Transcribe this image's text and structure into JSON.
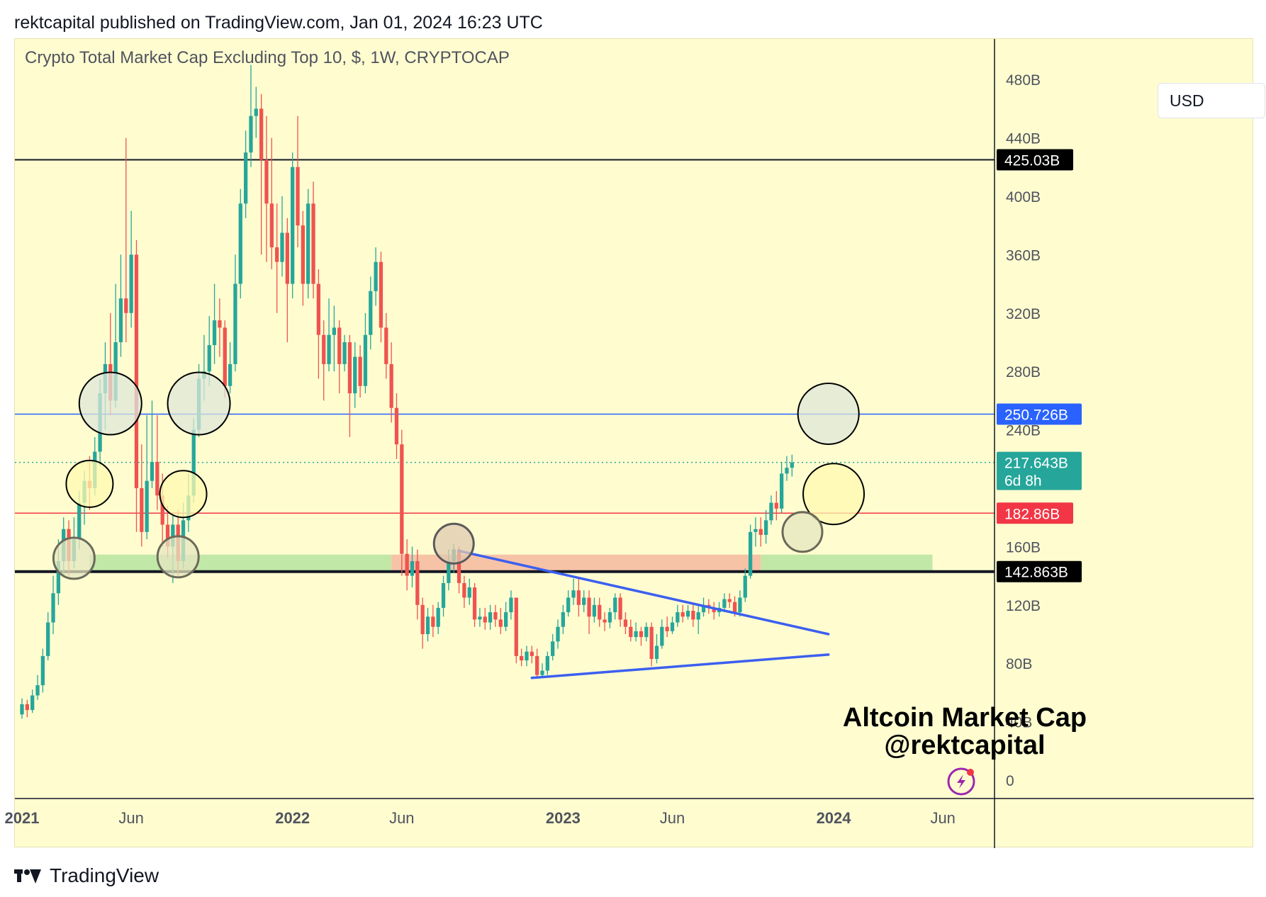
{
  "header": {
    "published": "rektcapital published on TradingView.com, Jan 01, 2024 16:23 UTC"
  },
  "footer": {
    "brand": "TradingView"
  },
  "currency_button": "USD",
  "colors": {
    "background": "#fffdd0",
    "up": "#26a69a",
    "down": "#ef5350",
    "trendline": "#3c5ff0",
    "resistance_blue": "#2962ff",
    "support_red": "#f23645"
  },
  "chart_data": {
    "type": "candlestick",
    "title": "Crypto Total Market Cap Excluding Top 10, $, 1W, CRYPTOCAP",
    "ylim": [
      0,
      500
    ],
    "y_unit": "B",
    "y_ticks": [
      0,
      40,
      80,
      120,
      160,
      200,
      240,
      280,
      320,
      360,
      400,
      440,
      480
    ],
    "y_tick_labels": [
      "0",
      "40B",
      "80B",
      "120B",
      "160B",
      "240B",
      "280B",
      "320B",
      "360B",
      "400B",
      "440B",
      "480B"
    ],
    "y_tick_label_values": [
      0,
      40,
      80,
      120,
      160,
      240,
      280,
      320,
      360,
      400,
      440,
      480
    ],
    "x_ticks": [
      {
        "label": "2021",
        "week": 0,
        "bold": true
      },
      {
        "label": "Jun",
        "week": 21,
        "bold": false
      },
      {
        "label": "2022",
        "week": 52,
        "bold": true
      },
      {
        "label": "Jun",
        "week": 73,
        "bold": false
      },
      {
        "label": "2023",
        "week": 104,
        "bold": true
      },
      {
        "label": "Jun",
        "week": 125,
        "bold": false
      },
      {
        "label": "2024",
        "week": 156,
        "bold": true
      },
      {
        "label": "Jun",
        "week": 177,
        "bold": false
      }
    ],
    "weeks_total": 183,
    "price_levels": [
      {
        "value": 425.03,
        "label": "425.03B",
        "color": "#131722",
        "style": "solid",
        "width": 2
      },
      {
        "value": 250.726,
        "label": "250.726B",
        "color": "#2962ff",
        "style": "solid",
        "width": 1.5
      },
      {
        "value": 217.643,
        "label": "217.643B",
        "sublabel": "6d 8h",
        "color": "#26a69a",
        "style": "dotted",
        "width": 1.5
      },
      {
        "value": 182.86,
        "label": "182.86B",
        "color": "#f23645",
        "style": "solid",
        "width": 1.5
      },
      {
        "value": 142.863,
        "label": "142.863B",
        "color": "#131722",
        "style": "solid",
        "width": 4
      }
    ],
    "zones": [
      {
        "w0": 13,
        "w1": 71,
        "y0": 142.9,
        "y1": 154.5,
        "color": "#b7e4a0"
      },
      {
        "w0": 71,
        "w1": 142,
        "y0": 142.9,
        "y1": 154.5,
        "color": "#f6b8a0"
      },
      {
        "w0": 142,
        "w1": 175,
        "y0": 142.9,
        "y1": 154.5,
        "color": "#b7e4a0"
      }
    ],
    "trendlines": [
      {
        "w0": 84,
        "v0": 157,
        "w1": 155,
        "v1": 100
      },
      {
        "w0": 98,
        "v0": 70,
        "w1": 155,
        "v1": 86
      }
    ],
    "circles": [
      {
        "week": 17,
        "value": 258,
        "r": 44,
        "fill": "#dde5d8"
      },
      {
        "week": 34,
        "value": 258,
        "r": 44,
        "fill": "#dde5d8"
      },
      {
        "week": 13,
        "value": 203,
        "r": 33,
        "fill": "#fff8b0"
      },
      {
        "week": 31,
        "value": 196,
        "r": 33,
        "fill": "#fff8b0"
      },
      {
        "week": 10,
        "value": 152,
        "r": 29,
        "fill": "#e6e6c0"
      },
      {
        "week": 30,
        "value": 153,
        "r": 29,
        "fill": "#e6e6c0"
      },
      {
        "week": 83,
        "value": 162,
        "r": 28,
        "fill": "#e0c8b0"
      },
      {
        "week": 155,
        "value": 251,
        "r": 43,
        "fill": "#dde5d8"
      },
      {
        "week": 156,
        "value": 196,
        "r": 43,
        "fill": "#fff8b0"
      },
      {
        "week": 150,
        "value": 170,
        "r": 28,
        "fill": "#e6e6c0"
      }
    ],
    "candles": [
      {
        "o": 45,
        "c": 52,
        "h": 56,
        "l": 42
      },
      {
        "o": 52,
        "c": 48,
        "h": 55,
        "l": 43
      },
      {
        "o": 48,
        "c": 58,
        "h": 62,
        "l": 46
      },
      {
        "o": 58,
        "c": 65,
        "h": 72,
        "l": 55
      },
      {
        "o": 65,
        "c": 85,
        "h": 90,
        "l": 60
      },
      {
        "o": 85,
        "c": 108,
        "h": 115,
        "l": 82
      },
      {
        "o": 108,
        "c": 128,
        "h": 140,
        "l": 100
      },
      {
        "o": 128,
        "c": 150,
        "h": 165,
        "l": 120
      },
      {
        "o": 150,
        "c": 172,
        "h": 180,
        "l": 140
      },
      {
        "o": 172,
        "c": 150,
        "h": 178,
        "l": 140
      },
      {
        "o": 150,
        "c": 165,
        "h": 180,
        "l": 145
      },
      {
        "o": 165,
        "c": 190,
        "h": 198,
        "l": 158
      },
      {
        "o": 190,
        "c": 205,
        "h": 212,
        "l": 175
      },
      {
        "o": 205,
        "c": 200,
        "h": 222,
        "l": 185
      },
      {
        "o": 200,
        "c": 225,
        "h": 235,
        "l": 195
      },
      {
        "o": 225,
        "c": 265,
        "h": 275,
        "l": 215
      },
      {
        "o": 265,
        "c": 285,
        "h": 300,
        "l": 240
      },
      {
        "o": 285,
        "c": 260,
        "h": 320,
        "l": 250
      },
      {
        "o": 260,
        "c": 300,
        "h": 340,
        "l": 255
      },
      {
        "o": 300,
        "c": 330,
        "h": 360,
        "l": 290
      },
      {
        "o": 330,
        "c": 320,
        "h": 440,
        "l": 300
      },
      {
        "o": 320,
        "c": 360,
        "h": 390,
        "l": 310
      },
      {
        "o": 360,
        "c": 200,
        "h": 370,
        "l": 170
      },
      {
        "o": 200,
        "c": 170,
        "h": 230,
        "l": 160
      },
      {
        "o": 170,
        "c": 205,
        "h": 250,
        "l": 165
      },
      {
        "o": 205,
        "c": 218,
        "h": 260,
        "l": 200
      },
      {
        "o": 218,
        "c": 195,
        "h": 250,
        "l": 185
      },
      {
        "o": 195,
        "c": 175,
        "h": 210,
        "l": 160
      },
      {
        "o": 175,
        "c": 160,
        "h": 188,
        "l": 152
      },
      {
        "o": 160,
        "c": 175,
        "h": 182,
        "l": 135
      },
      {
        "o": 175,
        "c": 150,
        "h": 185,
        "l": 140
      },
      {
        "o": 150,
        "c": 178,
        "h": 190,
        "l": 145
      },
      {
        "o": 178,
        "c": 195,
        "h": 210,
        "l": 170
      },
      {
        "o": 195,
        "c": 240,
        "h": 248,
        "l": 190
      },
      {
        "o": 240,
        "c": 275,
        "h": 285,
        "l": 235
      },
      {
        "o": 275,
        "c": 280,
        "h": 305,
        "l": 260
      },
      {
        "o": 280,
        "c": 298,
        "h": 318,
        "l": 270
      },
      {
        "o": 298,
        "c": 315,
        "h": 340,
        "l": 285
      },
      {
        "o": 315,
        "c": 310,
        "h": 330,
        "l": 290
      },
      {
        "o": 310,
        "c": 270,
        "h": 315,
        "l": 262
      },
      {
        "o": 270,
        "c": 285,
        "h": 300,
        "l": 265
      },
      {
        "o": 285,
        "c": 340,
        "h": 360,
        "l": 280
      },
      {
        "o": 340,
        "c": 395,
        "h": 405,
        "l": 330
      },
      {
        "o": 395,
        "c": 430,
        "h": 445,
        "l": 385
      },
      {
        "o": 430,
        "c": 455,
        "h": 490,
        "l": 420
      },
      {
        "o": 455,
        "c": 460,
        "h": 475,
        "l": 440
      },
      {
        "o": 460,
        "c": 425,
        "h": 470,
        "l": 360
      },
      {
        "o": 425,
        "c": 395,
        "h": 455,
        "l": 355
      },
      {
        "o": 395,
        "c": 365,
        "h": 440,
        "l": 350
      },
      {
        "o": 365,
        "c": 355,
        "h": 395,
        "l": 320
      },
      {
        "o": 355,
        "c": 375,
        "h": 400,
        "l": 345
      },
      {
        "o": 375,
        "c": 340,
        "h": 385,
        "l": 300
      },
      {
        "o": 340,
        "c": 420,
        "h": 430,
        "l": 330
      },
      {
        "o": 420,
        "c": 380,
        "h": 455,
        "l": 365
      },
      {
        "o": 380,
        "c": 340,
        "h": 390,
        "l": 325
      },
      {
        "o": 340,
        "c": 395,
        "h": 405,
        "l": 330
      },
      {
        "o": 395,
        "c": 340,
        "h": 410,
        "l": 330
      },
      {
        "o": 340,
        "c": 305,
        "h": 350,
        "l": 275
      },
      {
        "o": 305,
        "c": 285,
        "h": 315,
        "l": 260
      },
      {
        "o": 285,
        "c": 305,
        "h": 330,
        "l": 280
      },
      {
        "o": 305,
        "c": 310,
        "h": 325,
        "l": 280
      },
      {
        "o": 310,
        "c": 285,
        "h": 315,
        "l": 265
      },
      {
        "o": 285,
        "c": 300,
        "h": 305,
        "l": 280
      },
      {
        "o": 300,
        "c": 265,
        "h": 305,
        "l": 235
      },
      {
        "o": 265,
        "c": 290,
        "h": 300,
        "l": 255
      },
      {
        "o": 290,
        "c": 270,
        "h": 298,
        "l": 262
      },
      {
        "o": 270,
        "c": 305,
        "h": 320,
        "l": 265
      },
      {
        "o": 305,
        "c": 335,
        "h": 345,
        "l": 295
      },
      {
        "o": 335,
        "c": 355,
        "h": 365,
        "l": 325
      },
      {
        "o": 355,
        "c": 310,
        "h": 362,
        "l": 300
      },
      {
        "o": 310,
        "c": 285,
        "h": 320,
        "l": 275
      },
      {
        "o": 285,
        "c": 255,
        "h": 300,
        "l": 245
      },
      {
        "o": 255,
        "c": 230,
        "h": 265,
        "l": 220
      },
      {
        "o": 230,
        "c": 155,
        "h": 240,
        "l": 140
      },
      {
        "o": 155,
        "c": 140,
        "h": 165,
        "l": 130
      },
      {
        "o": 140,
        "c": 150,
        "h": 160,
        "l": 132
      },
      {
        "o": 150,
        "c": 120,
        "h": 158,
        "l": 110
      },
      {
        "o": 120,
        "c": 100,
        "h": 125,
        "l": 90
      },
      {
        "o": 100,
        "c": 112,
        "h": 118,
        "l": 95
      },
      {
        "o": 112,
        "c": 105,
        "h": 120,
        "l": 98
      },
      {
        "o": 105,
        "c": 118,
        "h": 122,
        "l": 100
      },
      {
        "o": 118,
        "c": 135,
        "h": 140,
        "l": 112
      },
      {
        "o": 135,
        "c": 150,
        "h": 158,
        "l": 130
      },
      {
        "o": 150,
        "c": 158,
        "h": 162,
        "l": 142
      },
      {
        "o": 158,
        "c": 135,
        "h": 160,
        "l": 128
      },
      {
        "o": 135,
        "c": 125,
        "h": 140,
        "l": 118
      },
      {
        "o": 125,
        "c": 132,
        "h": 138,
        "l": 120
      },
      {
        "o": 132,
        "c": 110,
        "h": 135,
        "l": 105
      },
      {
        "o": 110,
        "c": 112,
        "h": 118,
        "l": 105
      },
      {
        "o": 112,
        "c": 108,
        "h": 118,
        "l": 103
      },
      {
        "o": 108,
        "c": 115,
        "h": 120,
        "l": 103
      },
      {
        "o": 115,
        "c": 110,
        "h": 120,
        "l": 105
      },
      {
        "o": 110,
        "c": 105,
        "h": 118,
        "l": 100
      },
      {
        "o": 105,
        "c": 115,
        "h": 122,
        "l": 102
      },
      {
        "o": 115,
        "c": 125,
        "h": 130,
        "l": 110
      },
      {
        "o": 125,
        "c": 85,
        "h": 125,
        "l": 80
      },
      {
        "o": 85,
        "c": 82,
        "h": 90,
        "l": 78
      },
      {
        "o": 82,
        "c": 88,
        "h": 92,
        "l": 78
      },
      {
        "o": 88,
        "c": 85,
        "h": 92,
        "l": 80
      },
      {
        "o": 85,
        "c": 72,
        "h": 90,
        "l": 70
      },
      {
        "o": 72,
        "c": 75,
        "h": 80,
        "l": 70
      },
      {
        "o": 75,
        "c": 85,
        "h": 88,
        "l": 72
      },
      {
        "o": 85,
        "c": 95,
        "h": 100,
        "l": 82
      },
      {
        "o": 95,
        "c": 105,
        "h": 110,
        "l": 90
      },
      {
        "o": 105,
        "c": 115,
        "h": 120,
        "l": 100
      },
      {
        "o": 115,
        "c": 125,
        "h": 130,
        "l": 112
      },
      {
        "o": 125,
        "c": 130,
        "h": 138,
        "l": 120
      },
      {
        "o": 130,
        "c": 120,
        "h": 138,
        "l": 112
      },
      {
        "o": 120,
        "c": 125,
        "h": 130,
        "l": 115
      },
      {
        "o": 125,
        "c": 112,
        "h": 130,
        "l": 100
      },
      {
        "o": 112,
        "c": 120,
        "h": 125,
        "l": 108
      },
      {
        "o": 120,
        "c": 110,
        "h": 125,
        "l": 105
      },
      {
        "o": 110,
        "c": 108,
        "h": 115,
        "l": 102
      },
      {
        "o": 108,
        "c": 115,
        "h": 118,
        "l": 104
      },
      {
        "o": 115,
        "c": 125,
        "h": 128,
        "l": 110
      },
      {
        "o": 125,
        "c": 110,
        "h": 128,
        "l": 105
      },
      {
        "o": 110,
        "c": 105,
        "h": 115,
        "l": 100
      },
      {
        "o": 105,
        "c": 98,
        "h": 110,
        "l": 95
      },
      {
        "o": 98,
        "c": 102,
        "h": 108,
        "l": 95
      },
      {
        "o": 102,
        "c": 98,
        "h": 105,
        "l": 92
      },
      {
        "o": 98,
        "c": 105,
        "h": 108,
        "l": 95
      },
      {
        "o": 105,
        "c": 83,
        "h": 108,
        "l": 78
      },
      {
        "o": 83,
        "c": 92,
        "h": 100,
        "l": 80
      },
      {
        "o": 92,
        "c": 105,
        "h": 110,
        "l": 90
      },
      {
        "o": 105,
        "c": 102,
        "h": 112,
        "l": 98
      },
      {
        "o": 102,
        "c": 108,
        "h": 112,
        "l": 100
      },
      {
        "o": 108,
        "c": 115,
        "h": 120,
        "l": 105
      },
      {
        "o": 115,
        "c": 112,
        "h": 120,
        "l": 108
      },
      {
        "o": 112,
        "c": 116,
        "h": 120,
        "l": 110
      },
      {
        "o": 116,
        "c": 110,
        "h": 120,
        "l": 105
      },
      {
        "o": 110,
        "c": 115,
        "h": 120,
        "l": 100
      },
      {
        "o": 115,
        "c": 120,
        "h": 125,
        "l": 112
      },
      {
        "o": 120,
        "c": 118,
        "h": 124,
        "l": 114
      },
      {
        "o": 118,
        "c": 115,
        "h": 122,
        "l": 110
      },
      {
        "o": 115,
        "c": 118,
        "h": 122,
        "l": 112
      },
      {
        "o": 118,
        "c": 124,
        "h": 128,
        "l": 115
      },
      {
        "o": 124,
        "c": 122,
        "h": 128,
        "l": 118
      },
      {
        "o": 122,
        "c": 115,
        "h": 126,
        "l": 112
      },
      {
        "o": 115,
        "c": 125,
        "h": 130,
        "l": 112
      },
      {
        "o": 125,
        "c": 140,
        "h": 145,
        "l": 122
      },
      {
        "o": 140,
        "c": 170,
        "h": 175,
        "l": 138
      },
      {
        "o": 170,
        "c": 172,
        "h": 180,
        "l": 160
      },
      {
        "o": 172,
        "c": 168,
        "h": 180,
        "l": 160
      },
      {
        "o": 168,
        "c": 178,
        "h": 185,
        "l": 162
      },
      {
        "o": 178,
        "c": 190,
        "h": 195,
        "l": 175
      },
      {
        "o": 190,
        "c": 186,
        "h": 198,
        "l": 178
      },
      {
        "o": 186,
        "c": 210,
        "h": 218,
        "l": 183
      },
      {
        "o": 210,
        "c": 214,
        "h": 222,
        "l": 205
      },
      {
        "o": 214,
        "c": 217.6,
        "h": 223,
        "l": 208
      }
    ]
  },
  "watermark": {
    "line1": "Altcoin Market Cap",
    "line2": "@rektcapital"
  }
}
